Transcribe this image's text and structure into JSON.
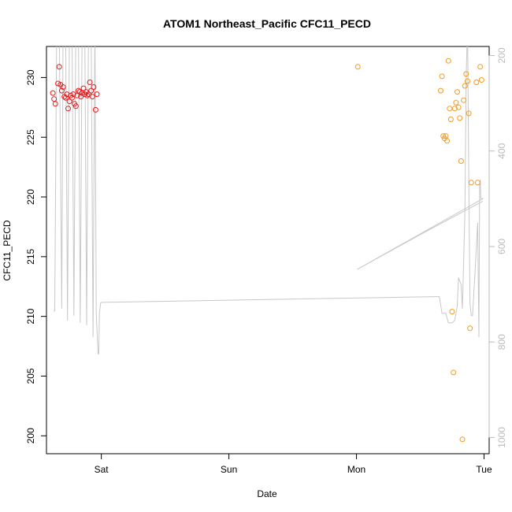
{
  "chart_data": {
    "type": "scatter",
    "title": "ATOM1 Northeast_Pacific CFC11_PECD",
    "xlabel": "Date",
    "ylabel": "CFC11_PECD",
    "x_ticks": [
      {
        "day": 1,
        "label": "Sat"
      },
      {
        "day": 2,
        "label": "Sun"
      },
      {
        "day": 3,
        "label": "Mon"
      },
      {
        "day": 4,
        "label": "Tue"
      }
    ],
    "xlim": [
      0.57,
      4.04
    ],
    "ylim": [
      198.5,
      232.6
    ],
    "y_ticks": [
      200,
      205,
      210,
      215,
      220,
      225,
      230
    ],
    "y2_ticks": [
      200,
      400,
      600,
      800,
      1000
    ],
    "y2lim": [
      181,
      1034
    ],
    "grid": false,
    "legend": "none",
    "colors": {
      "early_points": "#e8191c",
      "late_points": "#f39a1f",
      "pressure_line": "#c8c8c8",
      "axis": "#000000",
      "y2_axis": "#bbbbbb"
    },
    "series": [
      {
        "color_key": "early_points",
        "points": [
          [
            0.62,
            228.7
          ],
          [
            0.63,
            228.2
          ],
          [
            0.64,
            227.8
          ],
          [
            0.66,
            229.5
          ],
          [
            0.67,
            230.9
          ],
          [
            0.68,
            229.4
          ],
          [
            0.69,
            228.9
          ],
          [
            0.7,
            229.2
          ],
          [
            0.71,
            228.4
          ],
          [
            0.72,
            228.3
          ],
          [
            0.73,
            228.6
          ],
          [
            0.74,
            227.4
          ],
          [
            0.75,
            228.0
          ],
          [
            0.76,
            228.5
          ],
          [
            0.77,
            228.3
          ],
          [
            0.78,
            228.6
          ],
          [
            0.79,
            227.8
          ],
          [
            0.8,
            227.6
          ],
          [
            0.81,
            228.5
          ],
          [
            0.82,
            228.9
          ],
          [
            0.83,
            228.8
          ],
          [
            0.84,
            228.4
          ],
          [
            0.85,
            228.7
          ],
          [
            0.86,
            229.1
          ],
          [
            0.87,
            228.6
          ],
          [
            0.88,
            228.8
          ],
          [
            0.89,
            228.5
          ],
          [
            0.9,
            228.6
          ],
          [
            0.91,
            229.6
          ],
          [
            0.92,
            228.9
          ],
          [
            0.93,
            228.4
          ],
          [
            0.94,
            229.2
          ],
          [
            0.955,
            227.3
          ],
          [
            0.965,
            228.6
          ]
        ]
      },
      {
        "color_key": "late_points",
        "points": [
          [
            3.01,
            230.9
          ],
          [
            3.66,
            228.9
          ],
          [
            3.67,
            230.1
          ],
          [
            3.68,
            225.1
          ],
          [
            3.69,
            224.9
          ],
          [
            3.7,
            225.1
          ],
          [
            3.71,
            224.7
          ],
          [
            3.72,
            231.4
          ],
          [
            3.73,
            227.4
          ],
          [
            3.74,
            226.5
          ],
          [
            3.75,
            210.4
          ],
          [
            3.76,
            205.3
          ],
          [
            3.77,
            227.4
          ],
          [
            3.78,
            227.9
          ],
          [
            3.79,
            228.8
          ],
          [
            3.8,
            227.5
          ],
          [
            3.81,
            226.6
          ],
          [
            3.82,
            223.0
          ],
          [
            3.83,
            199.7
          ],
          [
            3.84,
            228.1
          ],
          [
            3.85,
            229.3
          ],
          [
            3.86,
            230.3
          ],
          [
            3.87,
            229.7
          ],
          [
            3.88,
            227.0
          ],
          [
            3.89,
            209.0
          ],
          [
            3.9,
            221.2
          ],
          [
            3.94,
            229.6
          ],
          [
            3.95,
            221.2
          ],
          [
            3.97,
            230.9
          ],
          [
            3.98,
            229.8
          ]
        ]
      }
    ],
    "pressure_line": [
      [
        0.625,
        735
      ],
      [
        0.635,
        735
      ],
      [
        0.65,
        130
      ],
      [
        0.67,
        130
      ],
      [
        0.69,
        730
      ],
      [
        0.7,
        130
      ],
      [
        0.72,
        130
      ],
      [
        0.735,
        755
      ],
      [
        0.75,
        130
      ],
      [
        0.77,
        130
      ],
      [
        0.785,
        745
      ],
      [
        0.8,
        130
      ],
      [
        0.82,
        130
      ],
      [
        0.835,
        760
      ],
      [
        0.85,
        130
      ],
      [
        0.87,
        130
      ],
      [
        0.885,
        765
      ],
      [
        0.9,
        130
      ],
      [
        0.92,
        130
      ],
      [
        0.935,
        790
      ],
      [
        0.95,
        130
      ],
      [
        0.96,
        740
      ],
      [
        0.97,
        800
      ],
      [
        0.975,
        825
      ],
      [
        0.98,
        825
      ],
      [
        0.985,
        740
      ],
      [
        0.995,
        718
      ],
      [
        1.0,
        717
      ],
      [
        3.62,
        705
      ],
      [
        3.65,
        705
      ],
      [
        3.67,
        740
      ],
      [
        3.7,
        740
      ],
      [
        3.72,
        760
      ],
      [
        3.75,
        760
      ],
      [
        3.77,
        755
      ],
      [
        3.79,
        725
      ],
      [
        3.8,
        665
      ],
      [
        3.82,
        680
      ],
      [
        3.83,
        730
      ],
      [
        3.85,
        530
      ],
      [
        3.86,
        250
      ],
      [
        3.87,
        130
      ],
      [
        3.88,
        450
      ],
      [
        3.89,
        720
      ],
      [
        3.9,
        745
      ],
      [
        3.91,
        745
      ],
      [
        3.93,
        650
      ],
      [
        3.95,
        550
      ],
      [
        3.96,
        790
      ],
      [
        3.965,
        470
      ],
      [
        3.97,
        460
      ],
      [
        3.975,
        500
      ],
      [
        3.99,
        500
      ],
      [
        3.005,
        648
      ],
      [
        3.5,
        575
      ],
      [
        3.99,
        505
      ]
    ]
  }
}
